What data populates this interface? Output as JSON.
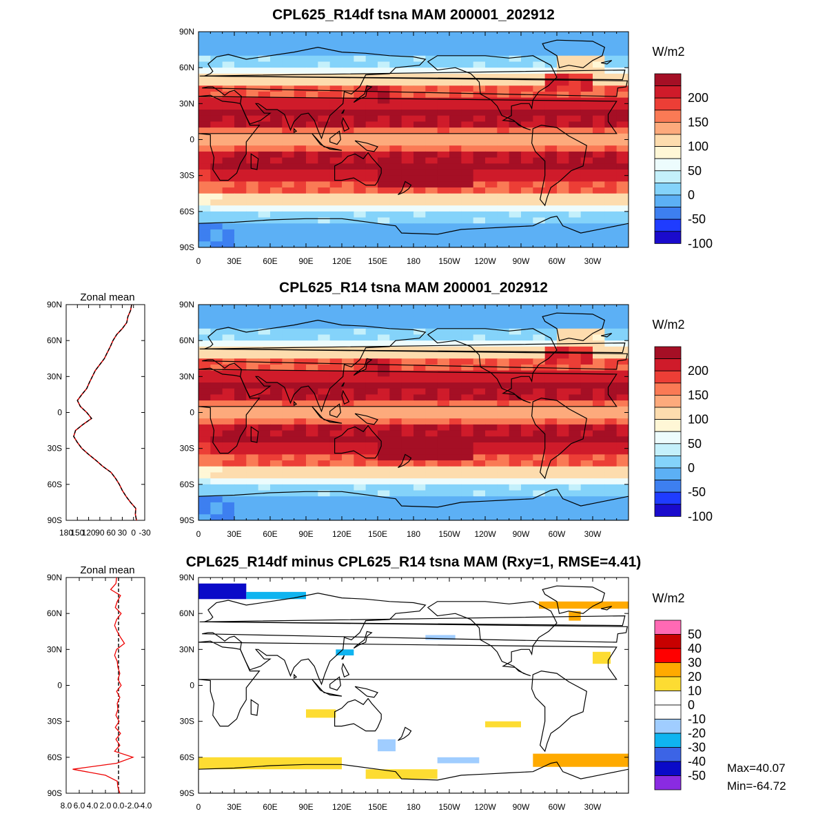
{
  "chart_data": [
    {
      "type": "heatmap",
      "title": "CPL625_R14df tsna MAM 200001_202912",
      "xlabel": "",
      "ylabel": "",
      "x_ticks": [
        "0",
        "30E",
        "60E",
        "90E",
        "120E",
        "150E",
        "180",
        "150W",
        "120W",
        "90W",
        "60W",
        "30W"
      ],
      "y_ticks": [
        "90N",
        "60N",
        "30N",
        "0",
        "30S",
        "60S",
        "90S"
      ],
      "colorbar": {
        "units": "W/m2",
        "colors": [
          "#1a0bcc",
          "#1f3cff",
          "#3d7ff0",
          "#5cb0f5",
          "#84d3fa",
          "#c4f0fb",
          "#edfcfd",
          "#fff7d6",
          "#fddcae",
          "#fdaa7c",
          "#fa7a55",
          "#ec3e36",
          "#cf1b2a",
          "#a50f25"
        ],
        "labels": [
          "200",
          "150",
          "100",
          "50",
          "0",
          "-50",
          "-100"
        ]
      },
      "zonal_mean": null
    },
    {
      "type": "heatmap",
      "title": "CPL625_R14 tsna MAM 200001_202912",
      "xlabel": "",
      "ylabel": "",
      "x_ticks": [
        "0",
        "30E",
        "60E",
        "90E",
        "120E",
        "150E",
        "180",
        "150W",
        "120W",
        "90W",
        "60W",
        "30W"
      ],
      "y_ticks": [
        "90N",
        "60N",
        "30N",
        "0",
        "30S",
        "60S",
        "90S"
      ],
      "colorbar": {
        "units": "W/m2",
        "colors": [
          "#1a0bcc",
          "#1f3cff",
          "#3d7ff0",
          "#5cb0f5",
          "#84d3fa",
          "#c4f0fb",
          "#edfcfd",
          "#fff7d6",
          "#fddcae",
          "#fdaa7c",
          "#fa7a55",
          "#ec3e36",
          "#cf1b2a",
          "#a50f25"
        ],
        "labels": [
          "200",
          "150",
          "100",
          "50",
          "0",
          "-50",
          "-100"
        ]
      },
      "zonal_mean": {
        "title": "Zonal mean",
        "x_ticks": [
          "180",
          "150",
          "120",
          "90",
          "60",
          "30",
          "0",
          "-30"
        ],
        "xlim": [
          180,
          -30
        ],
        "y_ticks": [
          "90N",
          "60N",
          "30N",
          "0",
          "30S",
          "60S",
          "90S"
        ],
        "lat": [
          90,
          85,
          80,
          75,
          70,
          65,
          60,
          55,
          50,
          45,
          40,
          35,
          30,
          25,
          20,
          15,
          10,
          5,
          0,
          -5,
          -10,
          -15,
          -20,
          -25,
          -30,
          -35,
          -40,
          -45,
          -50,
          -55,
          -60,
          -65,
          -70,
          -75,
          -80,
          -85,
          -90
        ],
        "values": [
          5,
          8,
          15,
          18,
          30,
          45,
          55,
          62,
          70,
          78,
          90,
          102,
          110,
          118,
          125,
          138,
          150,
          142,
          125,
          112,
          135,
          155,
          160,
          150,
          138,
          120,
          100,
          82,
          60,
          48,
          38,
          30,
          20,
          8,
          -6,
          -5,
          -8
        ]
      }
    },
    {
      "type": "heatmap",
      "title": "CPL625_R14df minus CPL625_R14 tsna MAM (Rxy=1, RMSE=4.41)",
      "xlabel": "",
      "ylabel": "",
      "x_ticks": [
        "0",
        "30E",
        "60E",
        "90E",
        "120E",
        "150E",
        "180",
        "150W",
        "120W",
        "90W",
        "60W",
        "30W"
      ],
      "y_ticks": [
        "90N",
        "60N",
        "30N",
        "0",
        "30S",
        "60S",
        "90S"
      ],
      "colorbar": {
        "units": "W/m2",
        "colors": [
          "#8a2be2",
          "#0a0ac8",
          "#3c64e6",
          "#0fb4f0",
          "#a0cdff",
          "#ffffff",
          "#ffffff",
          "#fddc32",
          "#ffaa00",
          "#ff0000",
          "#c80000",
          "#ff69b4"
        ],
        "labels": [
          "50",
          "40",
          "30",
          "20",
          "10",
          "0",
          "-10",
          "-20",
          "-30",
          "-40",
          "-50"
        ]
      },
      "zonal_mean": {
        "title": "Zonal mean",
        "x_ticks": [
          "8.0",
          "6.0",
          "4.0",
          "2.0",
          "0.0",
          "-2.0",
          "-4.0"
        ],
        "xlim": [
          8,
          -4
        ],
        "y_ticks": [
          "90N",
          "60N",
          "30N",
          "0",
          "30S",
          "60S",
          "90S"
        ],
        "lat": [
          90,
          85,
          80,
          75,
          70,
          65,
          60,
          55,
          50,
          45,
          40,
          35,
          30,
          25,
          20,
          15,
          10,
          5,
          0,
          -5,
          -10,
          -15,
          -20,
          -25,
          -30,
          -35,
          -40,
          -45,
          -50,
          -55,
          -60,
          -65,
          -70,
          -75,
          -80,
          -85,
          -90
        ],
        "values": [
          0.3,
          0.4,
          1.2,
          -0.3,
          0.2,
          0.5,
          -0.4,
          0.3,
          0.6,
          0.2,
          -0.3,
          -0.9,
          0.3,
          0.6,
          0.2,
          0.1,
          -0.2,
          0.1,
          -0.4,
          0.3,
          -0.2,
          0.2,
          0.1,
          0.4,
          -0.1,
          0.5,
          -0.3,
          0.4,
          -0.2,
          0.6,
          -2.2,
          0.3,
          7.0,
          2.0,
          0.2,
          0.1,
          -0.2
        ]
      },
      "stats": {
        "max": "Max=40.07",
        "min": "Min=-64.72"
      }
    }
  ]
}
